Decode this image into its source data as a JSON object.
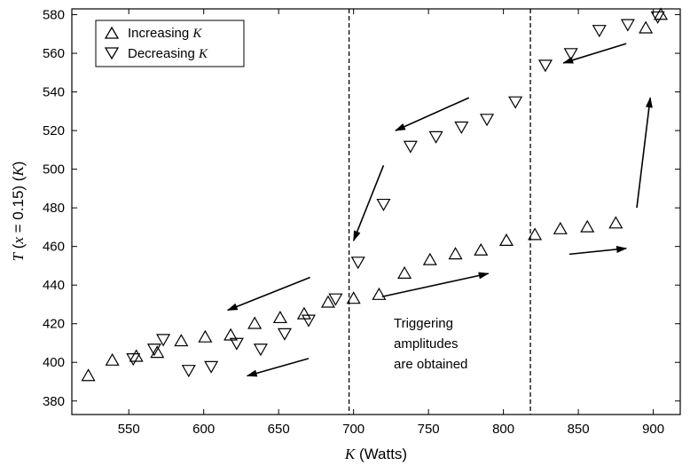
{
  "chart_data": {
    "type": "scatter",
    "xlabel_var": "K",
    "xlabel_unit": " (Watts)",
    "ylabel_var": "T",
    "ylabel_arg": "x",
    "ylabel_eq": " = 0.15) (",
    "ylabel_unitvar": "K",
    "xlim": [
      512,
      918
    ],
    "ylim": [
      373,
      583
    ],
    "xticks": [
      550,
      600,
      650,
      700,
      750,
      800,
      850,
      900
    ],
    "yticks": [
      380,
      400,
      420,
      440,
      460,
      480,
      500,
      520,
      540,
      560,
      580
    ],
    "series": [
      {
        "name_prefix": "Increasing ",
        "name_var": "K",
        "marker": "triangle-up",
        "points": [
          [
            523,
            393
          ],
          [
            539,
            401
          ],
          [
            555,
            403
          ],
          [
            569,
            405
          ],
          [
            585,
            411
          ],
          [
            601,
            413
          ],
          [
            618,
            414
          ],
          [
            634,
            420
          ],
          [
            651,
            423
          ],
          [
            667,
            425
          ],
          [
            683,
            431
          ],
          [
            700,
            433
          ],
          [
            717,
            435
          ],
          [
            734,
            446
          ],
          [
            751,
            453
          ],
          [
            768,
            456
          ],
          [
            785,
            458
          ],
          [
            802,
            463
          ],
          [
            821,
            466
          ],
          [
            838,
            469
          ],
          [
            856,
            470
          ],
          [
            875,
            472
          ],
          [
            895,
            573
          ],
          [
            905,
            580
          ]
        ]
      },
      {
        "name_prefix": "Decreasing ",
        "name_var": "K",
        "marker": "triangle-down",
        "points": [
          [
            553,
            402
          ],
          [
            567,
            407
          ],
          [
            573,
            412
          ],
          [
            590,
            396
          ],
          [
            605,
            398
          ],
          [
            622,
            410
          ],
          [
            638,
            407
          ],
          [
            654,
            415
          ],
          [
            670,
            422
          ],
          [
            688,
            433
          ],
          [
            703,
            452
          ],
          [
            720,
            482
          ],
          [
            738,
            512
          ],
          [
            755,
            517
          ],
          [
            772,
            522
          ],
          [
            789,
            526
          ],
          [
            808,
            535
          ],
          [
            828,
            554
          ],
          [
            845,
            560
          ],
          [
            864,
            572
          ],
          [
            883,
            575
          ],
          [
            903,
            579
          ]
        ]
      }
    ],
    "vlines": [
      697,
      818
    ],
    "annotation": [
      "Triggering",
      "amplitudes",
      "are obtained"
    ],
    "arrows": [
      {
        "from": [
          670,
          402
        ],
        "to": [
          629,
          393
        ]
      },
      {
        "from": [
          671,
          444
        ],
        "to": [
          616,
          427
        ]
      },
      {
        "from": [
          719,
          434
        ],
        "to": [
          790,
          446
        ]
      },
      {
        "from": [
          720,
          502
        ],
        "to": [
          700,
          463
        ]
      },
      {
        "from": [
          777,
          537
        ],
        "to": [
          728,
          520
        ]
      },
      {
        "from": [
          844,
          456
        ],
        "to": [
          882,
          459
        ]
      },
      {
        "from": [
          882,
          565
        ],
        "to": [
          840,
          555
        ]
      },
      {
        "from": [
          889,
          480
        ],
        "to": [
          898,
          537
        ]
      }
    ],
    "legend_position": "top-left",
    "grid": false
  }
}
